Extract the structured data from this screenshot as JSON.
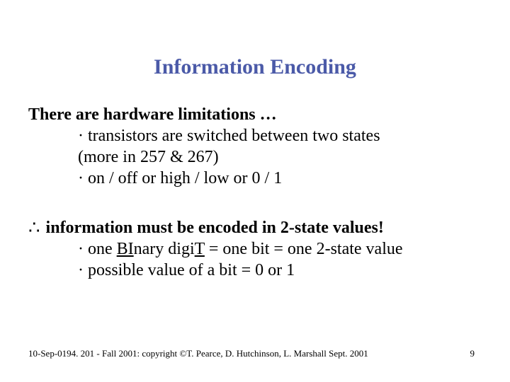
{
  "title": "Information Encoding",
  "line_hw": "There are hardware limitations …",
  "bullet_transistors": "· transistors are switched between two states",
  "line_more": "(more in 257 & 267)",
  "bullet_onoff": "· on / off    or   high / low   or      0 / 1",
  "therefore_symbol": "∴",
  "line_info": "information must be encoded in 2-state values!",
  "bit_prefix": "· one ",
  "bit_BI": "BI",
  "bit_mid": "nary digi",
  "bit_T": "T",
  "bit_suffix": "  = one bit  =  one 2-state value",
  "bullet_possible": "· possible value of a bit  =  0  or  1",
  "footer": "10-Sep-0194. 201 - Fall 2001: copyright ©T. Pearce, D. Hutchinson, L. Marshall Sept. 2001",
  "pagenum": "9",
  "colors": {
    "title": "#4b5aa8",
    "text": "#000000",
    "background": "#ffffff"
  },
  "fonts": {
    "family": "Times New Roman",
    "title_size_pt": 30,
    "body_size_pt": 24,
    "footer_size_pt": 13
  }
}
